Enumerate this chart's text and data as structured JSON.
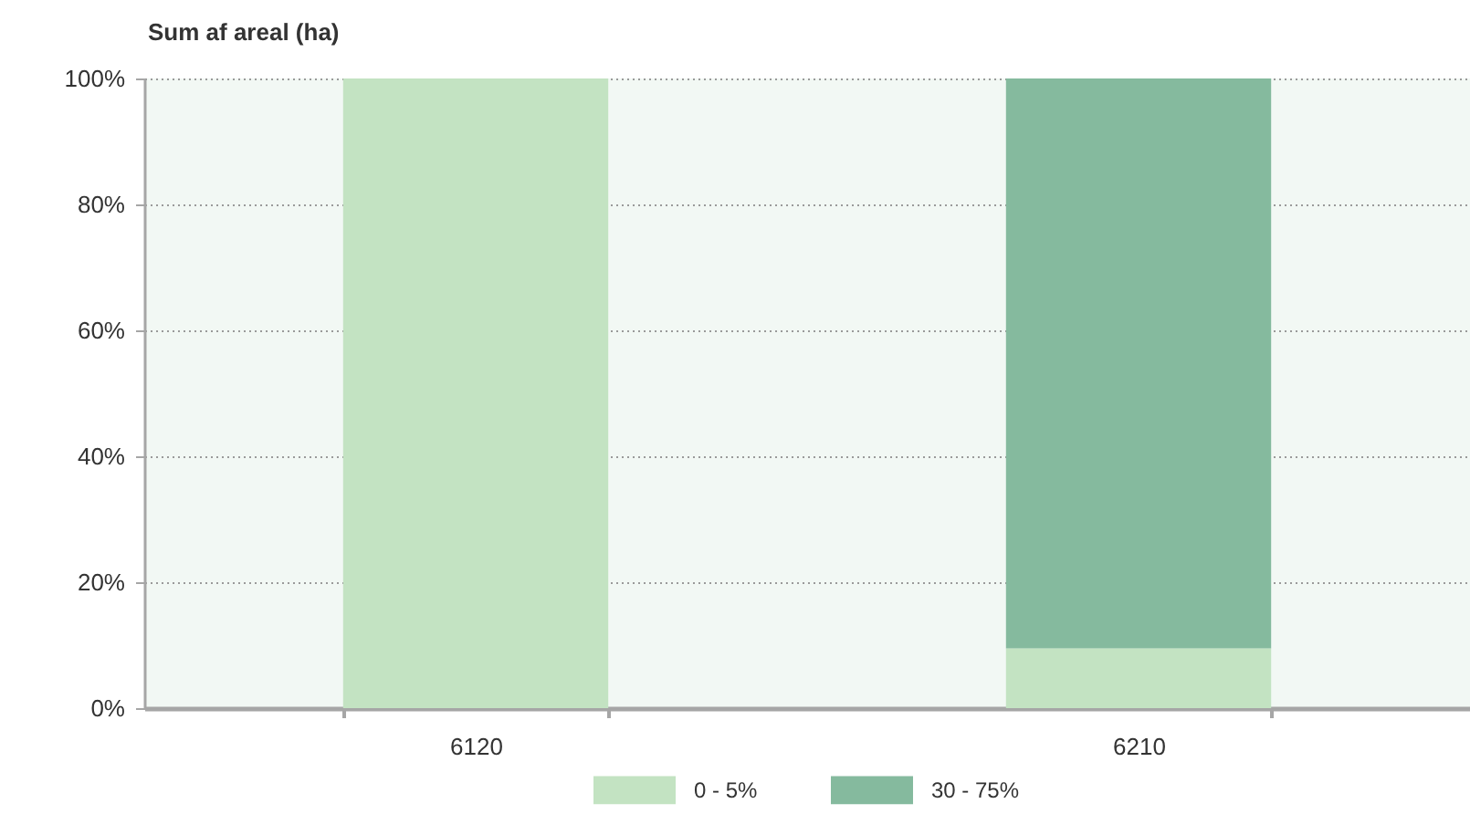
{
  "chart_data": {
    "type": "bar",
    "title": "Sum af areal (ha)",
    "categories": [
      "6120",
      "6210"
    ],
    "series": [
      {
        "name": "0 - 5%",
        "color": "#c3e3c2",
        "values": [
          100,
          9.5
        ]
      },
      {
        "name": "30 - 75%",
        "color": "#85ba9e",
        "values": [
          null,
          90.5
        ]
      }
    ],
    "stacked": true,
    "ylim": [
      0,
      100
    ],
    "yticks": [
      {
        "value": 0,
        "label": "0%"
      },
      {
        "value": 20,
        "label": "20%"
      },
      {
        "value": 40,
        "label": "40%"
      },
      {
        "value": 60,
        "label": "60%"
      },
      {
        "value": 80,
        "label": "80%"
      },
      {
        "value": 100,
        "label": "100%"
      }
    ],
    "grid": "y",
    "legend": "bottom"
  }
}
